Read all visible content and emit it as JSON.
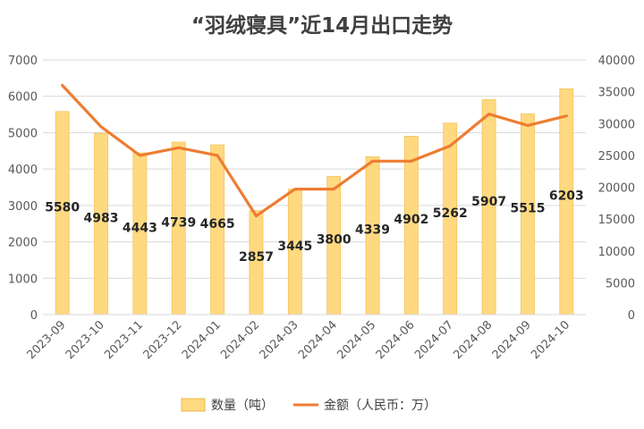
{
  "chart_data": {
    "type": "bar",
    "title": "“羽绒寝具”近14月出口走势",
    "categories": [
      "2023-09",
      "2023-10",
      "2023-11",
      "2023-12",
      "2024-01",
      "2024-02",
      "2024-03",
      "2024-04",
      "2024-05",
      "2024-06",
      "2024-07",
      "2024-08",
      "2024-09",
      "2024-10"
    ],
    "series": [
      {
        "name": "数量（吨）",
        "type": "bar",
        "axis": "left",
        "color": "#FFD980",
        "values": [
          5580,
          4983,
          4443,
          4739,
          4665,
          2857,
          3445,
          3800,
          4339,
          4902,
          5262,
          5907,
          5515,
          6203
        ],
        "labels": [
          "5580",
          "4983",
          "4443",
          "4739",
          "4665",
          "2857",
          "3445",
          "3800",
          "4339",
          "4902",
          "5262",
          "5907",
          "5515",
          "6203"
        ]
      },
      {
        "name": "金额（人民币：万）",
        "type": "line",
        "axis": "right",
        "color": "#ED7D31",
        "values": [
          36000,
          29500,
          25000,
          26200,
          25000,
          15500,
          19700,
          19700,
          24100,
          24100,
          26500,
          31500,
          29700,
          31200
        ]
      }
    ],
    "y_left": {
      "lim": [
        0,
        7000
      ],
      "ticks": [
        "0",
        "1000",
        "2000",
        "3000",
        "4000",
        "5000",
        "6000",
        "7000"
      ]
    },
    "y_right": {
      "lim": [
        0,
        40000
      ],
      "ticks": [
        "0",
        "5000",
        "10000",
        "15000",
        "20000",
        "25000",
        "30000",
        "35000",
        "40000"
      ]
    },
    "grid": true,
    "legend_position": "bottom"
  }
}
